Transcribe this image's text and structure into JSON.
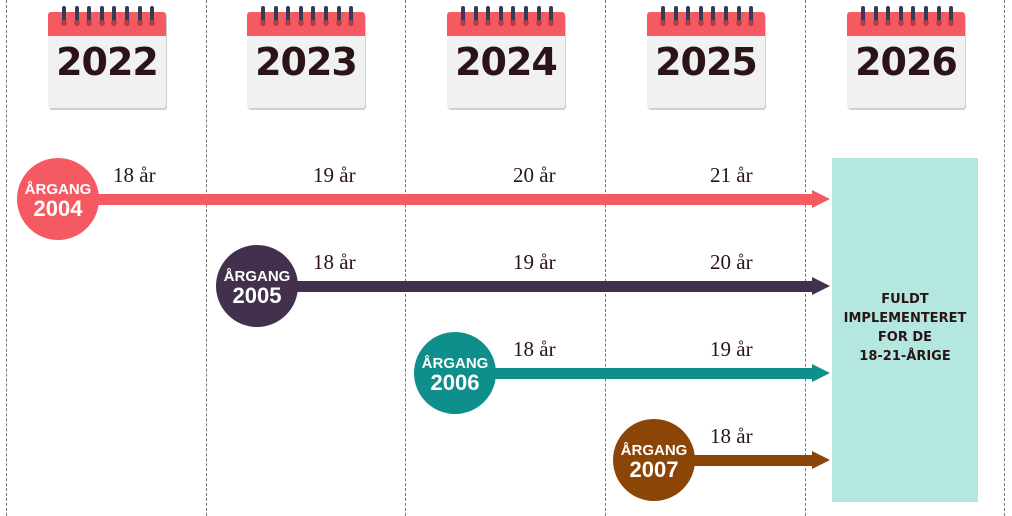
{
  "years": [
    "2022",
    "2023",
    "2024",
    "2025",
    "2026"
  ],
  "cohorts": [
    {
      "label": "ÅRGANG",
      "year": "2004",
      "color": "#f55a63",
      "ages": [
        "18 år",
        "19 år",
        "20 år",
        "21 år"
      ]
    },
    {
      "label": "ÅRGANG",
      "year": "2005",
      "color": "#43304c",
      "ages": [
        "18 år",
        "19 år",
        "20 år"
      ]
    },
    {
      "label": "ÅRGANG",
      "year": "2006",
      "color": "#0e8f8c",
      "ages": [
        "18 år",
        "19 år"
      ]
    },
    {
      "label": "ÅRGANG",
      "year": "2007",
      "color": "#8b4506",
      "ages": [
        "18 år"
      ]
    }
  ],
  "target": {
    "lines": [
      "FULDT",
      "IMPLEMENTERET",
      "FOR DE",
      "18-21-ÅRIGE"
    ],
    "color": "#b3e7df"
  },
  "colors": {
    "calendar_header": "#f55a63",
    "text": "#2a1418"
  }
}
